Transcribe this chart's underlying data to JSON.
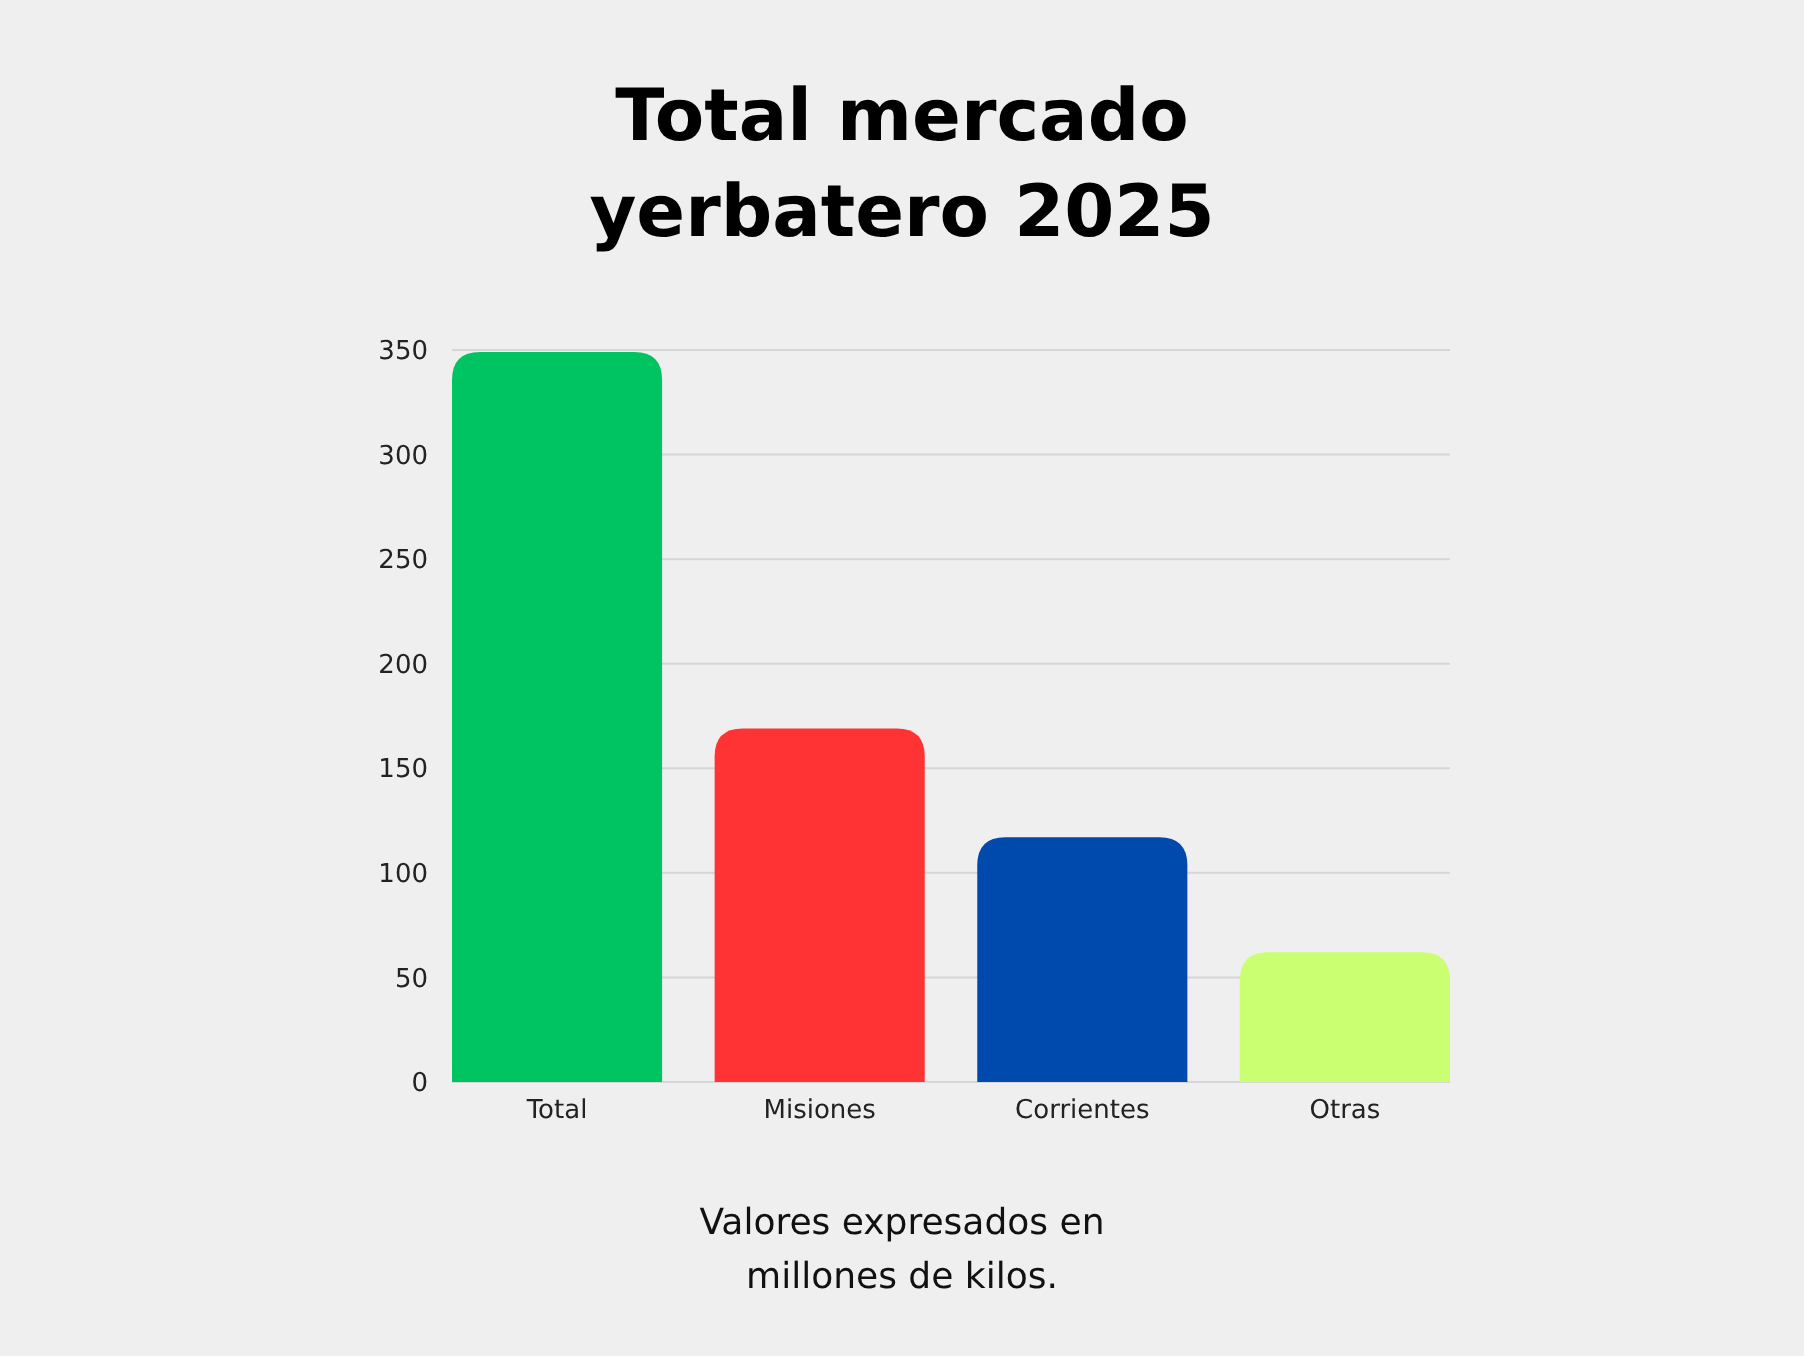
{
  "chart_data": {
    "type": "bar",
    "title": "Total mercado yerbatero 2025",
    "categories": [
      "Total",
      "Misiones",
      "Corrientes",
      "Otras"
    ],
    "values": [
      349,
      169,
      117,
      62
    ],
    "colors": [
      "#00c462",
      "#ff3333",
      "#004aad",
      "#c9ff70"
    ],
    "ylim": [
      0,
      350
    ],
    "yticks": [
      0,
      50,
      100,
      150,
      200,
      250,
      300,
      350
    ],
    "grid": "y",
    "annotations": [
      "Valores expresados en millones de kilos."
    ]
  }
}
